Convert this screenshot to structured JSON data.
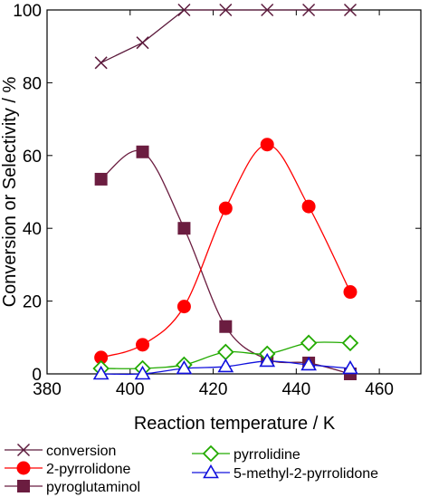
{
  "chart_data": {
    "type": "line",
    "title": "",
    "xlabel": "Reaction temperature / K",
    "ylabel": "Conversion or Selectivity / %",
    "xlim": [
      380,
      470
    ],
    "ylim": [
      0,
      100
    ],
    "xticks": [
      380,
      400,
      420,
      440,
      460
    ],
    "yticks": [
      0,
      20,
      40,
      60,
      80,
      100
    ],
    "grid": false,
    "legend_position": "bottom",
    "series": [
      {
        "name": "conversion",
        "color": "#5c1a3c",
        "marker": "cross",
        "x": [
          393,
          403,
          413,
          423,
          433,
          443,
          453
        ],
        "y": [
          85.5,
          91,
          100,
          100,
          100,
          100,
          100
        ]
      },
      {
        "name": "2-pyrrolidone",
        "color": "#ff0000",
        "marker": "circle",
        "x": [
          393,
          403,
          413,
          423,
          433,
          443,
          453
        ],
        "y": [
          4.5,
          8,
          18.5,
          45.5,
          63,
          46,
          22.5
        ]
      },
      {
        "name": "pyroglutaminol",
        "color": "#6b1d40",
        "marker": "square",
        "x": [
          393,
          403,
          413,
          423,
          433,
          443,
          453
        ],
        "y": [
          53.5,
          61,
          40,
          13,
          4,
          3,
          0
        ]
      },
      {
        "name": "pyrrolidine",
        "color": "#22aa00",
        "marker": "diamond",
        "x": [
          393,
          403,
          413,
          423,
          433,
          443,
          453
        ],
        "y": [
          1.5,
          1.5,
          2.5,
          6,
          5.5,
          8.5,
          8.5
        ]
      },
      {
        "name": "5-methyl-2-pyrrolidone",
        "color": "#1010dd",
        "marker": "triangle",
        "x": [
          393,
          403,
          413,
          423,
          433,
          443,
          453
        ],
        "y": [
          0,
          0,
          1.5,
          2,
          3.5,
          2.5,
          1.5
        ]
      }
    ]
  }
}
